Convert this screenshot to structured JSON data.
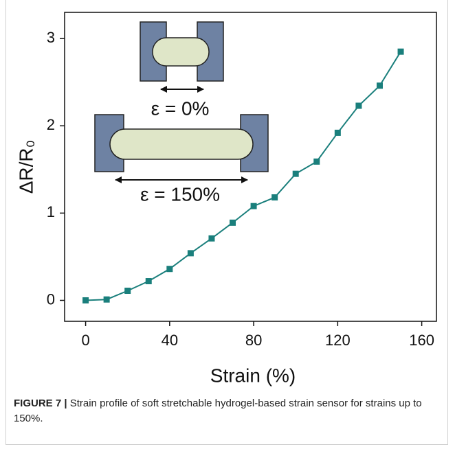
{
  "chart_data": {
    "type": "line",
    "x_label": "Strain (%)",
    "y_label": "ΔR/R₀",
    "annotations": [
      "ε = 0%",
      "ε = 150%"
    ],
    "x": [
      0,
      10,
      20,
      30,
      40,
      50,
      60,
      70,
      80,
      90,
      100,
      110,
      120,
      130,
      140,
      150
    ],
    "series": [
      {
        "color": "#1a7f7c",
        "values": [
          0,
          0.01,
          0.11,
          0.22,
          0.36,
          0.54,
          0.71,
          0.89,
          1.08,
          1.18,
          1.45,
          1.59,
          1.92,
          2.23,
          2.46,
          2.85
        ]
      }
    ],
    "xlim": [
      -10,
      167
    ],
    "xticks": [
      0,
      40,
      80,
      120,
      160
    ],
    "ylim": [
      -0.24,
      3.3
    ],
    "yticks": [
      0,
      1,
      2,
      3
    ],
    "grid": false
  },
  "caption": {
    "label": "FIGURE 7 |",
    "text": "Strain profile of soft stretchable hydrogel-based strain sensor for strains up to 150%."
  }
}
